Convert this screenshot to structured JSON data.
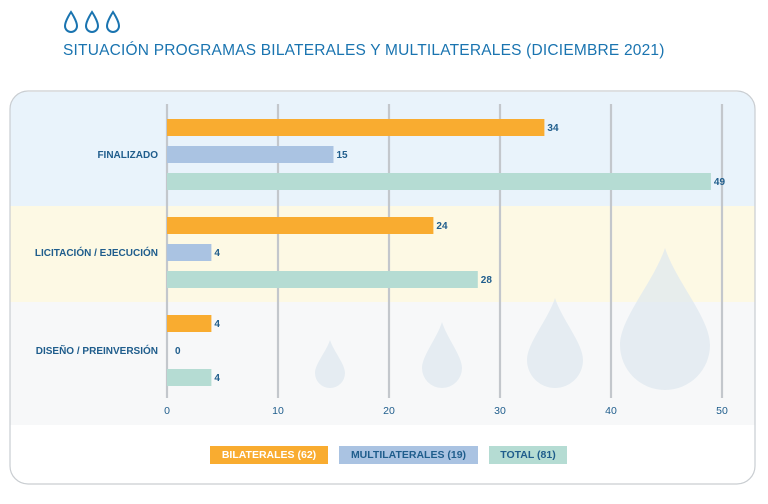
{
  "header": {
    "title": "SITUACIÓN PROGRAMAS BILATERALES Y MULTILATERALES (DICIEMBRE 2021)"
  },
  "colors": {
    "bilaterales": "#f9ac30",
    "multilaterales": "#aac3e2",
    "total": "#b5dcd3",
    "text": "#1f5d8c",
    "band_1": "#e9f3fb",
    "band_2": "#fdf9e4",
    "band_3": "#f7f8f9"
  },
  "chart_data": {
    "type": "bar",
    "orientation": "horizontal",
    "categories": [
      "FINALIZADO",
      "LICITACIÓN / EJECUCIÓN",
      "DISEÑO / PREINVERSIÓN"
    ],
    "series": [
      {
        "name": "BILATERALES (62)",
        "values": [
          34,
          24,
          4
        ]
      },
      {
        "name": "MULTILATERALES (19)",
        "values": [
          15,
          4,
          0
        ]
      },
      {
        "name": "TOTAL (81)",
        "values": [
          49,
          28,
          4
        ]
      }
    ],
    "xlim": [
      0,
      50
    ],
    "xticks": [
      0,
      10,
      20,
      30,
      40,
      50
    ],
    "grid": true,
    "legend_position": "bottom"
  }
}
